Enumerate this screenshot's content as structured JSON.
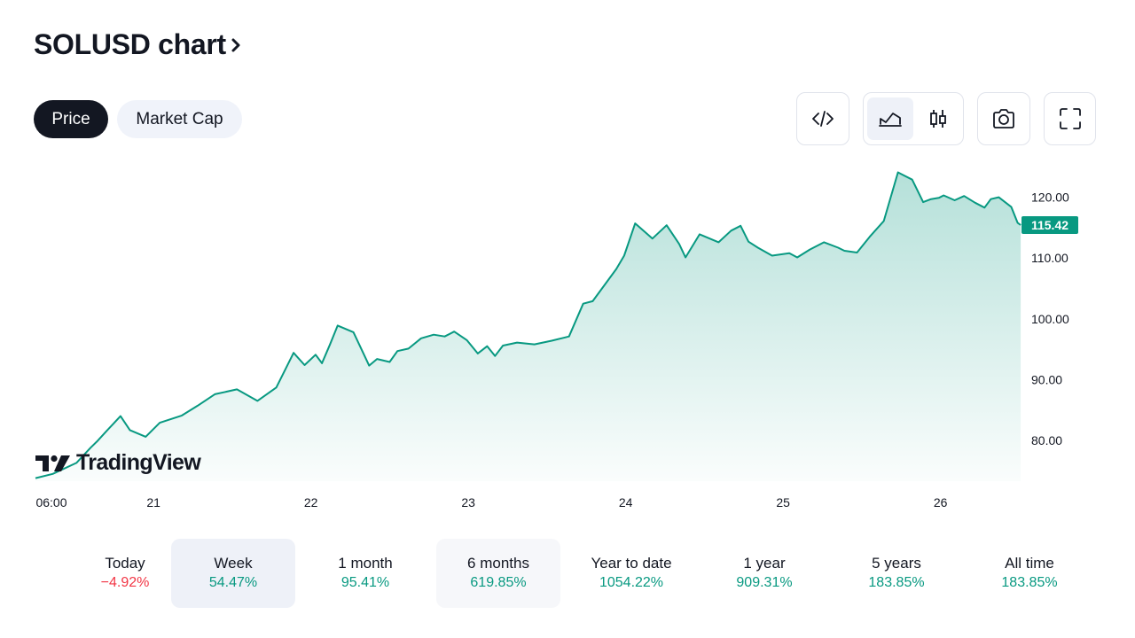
{
  "header": {
    "title": "SOLUSD chart",
    "chevron_icon": "chevron-right-icon"
  },
  "tabs": [
    {
      "label": "Price",
      "active": true
    },
    {
      "label": "Market Cap",
      "active": false
    }
  ],
  "toolbar": {
    "embed_icon": "code-embed-icon",
    "area_icon": "area-chart-icon",
    "candles_icon": "candlestick-icon",
    "snapshot_icon": "camera-icon",
    "fullscreen_icon": "fullscreen-icon",
    "active_chart_style": "area"
  },
  "colors": {
    "line": "#089981",
    "down": "#f23645",
    "text": "#131722",
    "price_label_bg": "#089981"
  },
  "chart_data": {
    "type": "area",
    "title": "SOLUSD",
    "ylim": [
      73.3,
      126.5
    ],
    "y_ticks": [
      80,
      90,
      100,
      110,
      120
    ],
    "y_tick_labels": [
      "80.00",
      "90.00",
      "100.00",
      "110.00",
      "120.00"
    ],
    "x_ticks": [
      0,
      0.75,
      1.75,
      2.75,
      3.75,
      4.75,
      5.75
    ],
    "x_tick_labels": [
      "06:00",
      "21",
      "22",
      "23",
      "24",
      "25",
      "26"
    ],
    "x_unit": "days since Oct 20 06:00",
    "last_price": 115.42,
    "last_price_label": "115.42",
    "x": [
      0,
      0.11,
      0.26,
      0.35,
      0.39,
      0.45,
      0.54,
      0.6,
      0.7,
      0.79,
      0.93,
      1.03,
      1.14,
      1.28,
      1.41,
      1.53,
      1.59,
      1.64,
      1.71,
      1.78,
      1.82,
      1.87,
      1.92,
      2.02,
      2.12,
      2.17,
      2.25,
      2.3,
      2.37,
      2.45,
      2.53,
      2.6,
      2.66,
      2.74,
      2.81,
      2.87,
      2.92,
      2.97,
      3.06,
      3.17,
      3.28,
      3.39,
      3.48,
      3.54,
      3.69,
      3.74,
      3.81,
      3.92,
      4.01,
      4.09,
      4.13,
      4.22,
      4.34,
      4.42,
      4.48,
      4.53,
      4.59,
      4.68,
      4.79,
      4.84,
      4.92,
      5.01,
      5.1,
      5.14,
      5.22,
      5.3,
      5.39,
      5.48,
      5.57,
      5.64,
      5.69,
      5.74,
      5.77,
      5.84,
      5.9,
      5.97,
      6.03,
      6.07,
      6.12,
      6.2,
      6.24,
      6.26
    ],
    "values": [
      73.8,
      74.5,
      76.3,
      78.8,
      79.8,
      81.5,
      84,
      81.7,
      80.6,
      82.9,
      84.1,
      85.7,
      87.6,
      88.4,
      86.5,
      88.7,
      91.8,
      94.4,
      92.4,
      94.1,
      92.7,
      95.7,
      98.9,
      97.8,
      92.3,
      93.4,
      92.9,
      94.7,
      95.1,
      96.8,
      97.4,
      97.1,
      97.9,
      96.5,
      94.3,
      95.5,
      93.9,
      95.6,
      96.1,
      95.8,
      96.4,
      97.1,
      102.5,
      102.9,
      108.2,
      110.4,
      115.7,
      113.2,
      115.4,
      112.3,
      110.1,
      113.9,
      112.6,
      114.5,
      115.3,
      112.7,
      111.7,
      110.4,
      110.8,
      110.1,
      111.4,
      112.6,
      111.7,
      111.2,
      110.9,
      113.5,
      116.1,
      124.1,
      122.9,
      119.2,
      119.7,
      119.9,
      120.3,
      119.5,
      120.2,
      119.1,
      118.3,
      119.7,
      120.0,
      118.4,
      115.8,
      115.42
    ]
  },
  "periods": [
    {
      "label": "Today",
      "value": "−4.92%",
      "dir": "down",
      "state": ""
    },
    {
      "label": "Week",
      "value": "54.47%",
      "dir": "up",
      "state": "sel"
    },
    {
      "label": "1 month",
      "value": "95.41%",
      "dir": "up",
      "state": ""
    },
    {
      "label": "6 months",
      "value": "619.85%",
      "dir": "up",
      "state": "hov"
    },
    {
      "label": "Year to date",
      "value": "1054.22%",
      "dir": "up",
      "state": ""
    },
    {
      "label": "1 year",
      "value": "909.31%",
      "dir": "up",
      "state": ""
    },
    {
      "label": "5 years",
      "value": "183.85%",
      "dir": "up",
      "state": ""
    },
    {
      "label": "All time",
      "value": "183.85%",
      "dir": "up",
      "state": ""
    }
  ],
  "watermark": {
    "text": "TradingView",
    "icon": "tradingview-logo-icon"
  }
}
